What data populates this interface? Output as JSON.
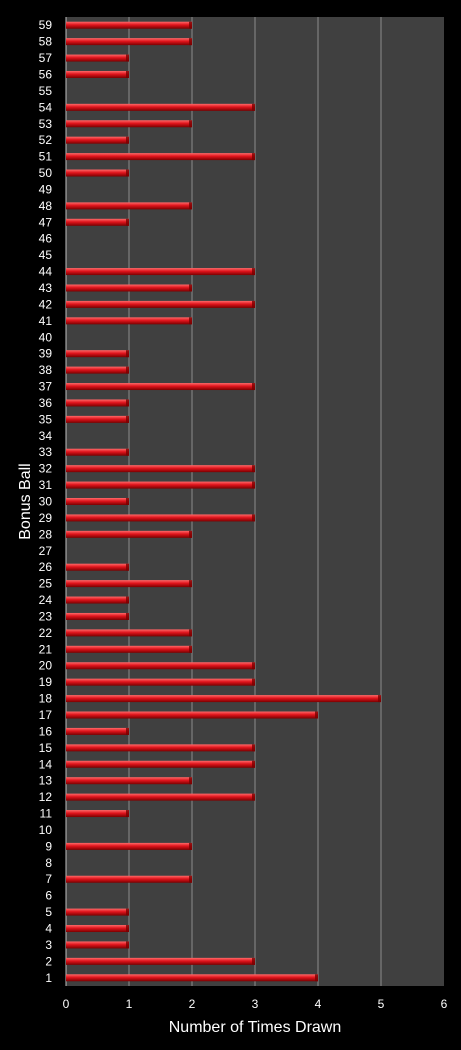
{
  "chart_data": {
    "type": "bar",
    "orientation": "horizontal",
    "xlabel": "Number of Times Drawn",
    "ylabel": "Bonus Ball",
    "xlim": [
      0,
      6
    ],
    "xticks": [
      0,
      1,
      2,
      3,
      4,
      5,
      6
    ],
    "grid": "vertical",
    "colors": {
      "background": "#000000",
      "plot_area": "#404040",
      "bar": "#e0141c",
      "bar_highlight": "#ff6a6a",
      "bar_shadow": "#7a0000",
      "gridline": "#8c8c8c",
      "text": "#ffffff"
    },
    "categories": [
      "1",
      "2",
      "3",
      "4",
      "5",
      "6",
      "7",
      "8",
      "9",
      "10",
      "11",
      "12",
      "13",
      "14",
      "15",
      "16",
      "17",
      "18",
      "19",
      "20",
      "21",
      "22",
      "23",
      "24",
      "25",
      "26",
      "27",
      "28",
      "29",
      "30",
      "31",
      "32",
      "33",
      "34",
      "35",
      "36",
      "37",
      "38",
      "39",
      "40",
      "41",
      "42",
      "43",
      "44",
      "45",
      "46",
      "47",
      "48",
      "49",
      "50",
      "51",
      "52",
      "53",
      "54",
      "55",
      "56",
      "57",
      "58",
      "59"
    ],
    "values": [
      4,
      3,
      1,
      1,
      1,
      0,
      2,
      0,
      2,
      0,
      1,
      3,
      2,
      3,
      3,
      1,
      4,
      5,
      3,
      3,
      2,
      2,
      1,
      1,
      2,
      1,
      0,
      2,
      3,
      1,
      3,
      3,
      1,
      0,
      1,
      1,
      3,
      1,
      1,
      0,
      2,
      3,
      2,
      3,
      0,
      0,
      1,
      2,
      0,
      1,
      3,
      1,
      2,
      3,
      0,
      1,
      1,
      2,
      2
    ]
  }
}
